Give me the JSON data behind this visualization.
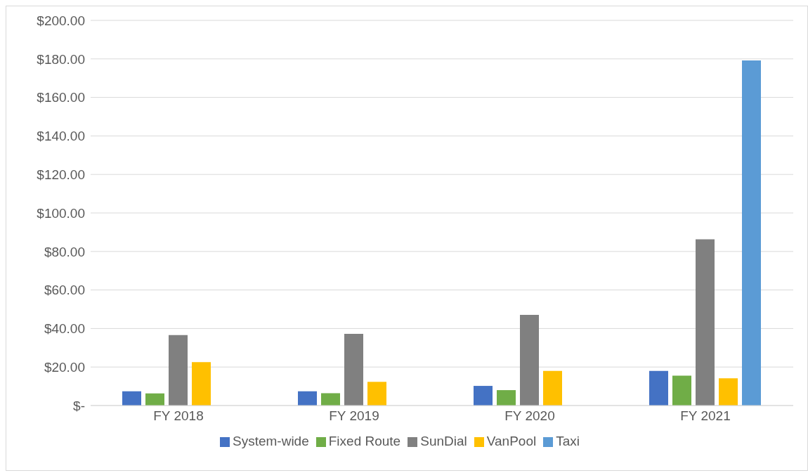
{
  "chart_data": {
    "type": "bar",
    "categories": [
      "FY 2018",
      "FY 2019",
      "FY 2020",
      "FY 2021"
    ],
    "series": [
      {
        "name": "System-wide",
        "color": "#4472c4",
        "values": [
          7.4,
          7.4,
          10.2,
          18.0
        ]
      },
      {
        "name": "Fixed Route",
        "color": "#70ad47",
        "values": [
          6.3,
          6.4,
          8.0,
          15.5
        ]
      },
      {
        "name": "SunDial",
        "color": "#808080",
        "values": [
          36.6,
          37.2,
          47.1,
          86.3
        ]
      },
      {
        "name": "VanPool",
        "color": "#ffc000",
        "values": [
          22.5,
          12.3,
          18.0,
          14.1
        ]
      },
      {
        "name": "Taxi",
        "color": "#5b9bd5",
        "values": [
          null,
          null,
          null,
          179.2
        ]
      }
    ],
    "ylim": [
      0,
      200
    ],
    "yticks": [
      {
        "value": 0,
        "label": "$-"
      },
      {
        "value": 20,
        "label": "$20.00"
      },
      {
        "value": 40,
        "label": "$40.00"
      },
      {
        "value": 60,
        "label": "$60.00"
      },
      {
        "value": 80,
        "label": "$80.00"
      },
      {
        "value": 100,
        "label": "$100.00"
      },
      {
        "value": 120,
        "label": "$120.00"
      },
      {
        "value": 140,
        "label": "$140.00"
      },
      {
        "value": 160,
        "label": "$160.00"
      },
      {
        "value": 180,
        "label": "$180.00"
      },
      {
        "value": 200,
        "label": "$200.00"
      }
    ],
    "grid": "y",
    "legend": "bottom"
  }
}
